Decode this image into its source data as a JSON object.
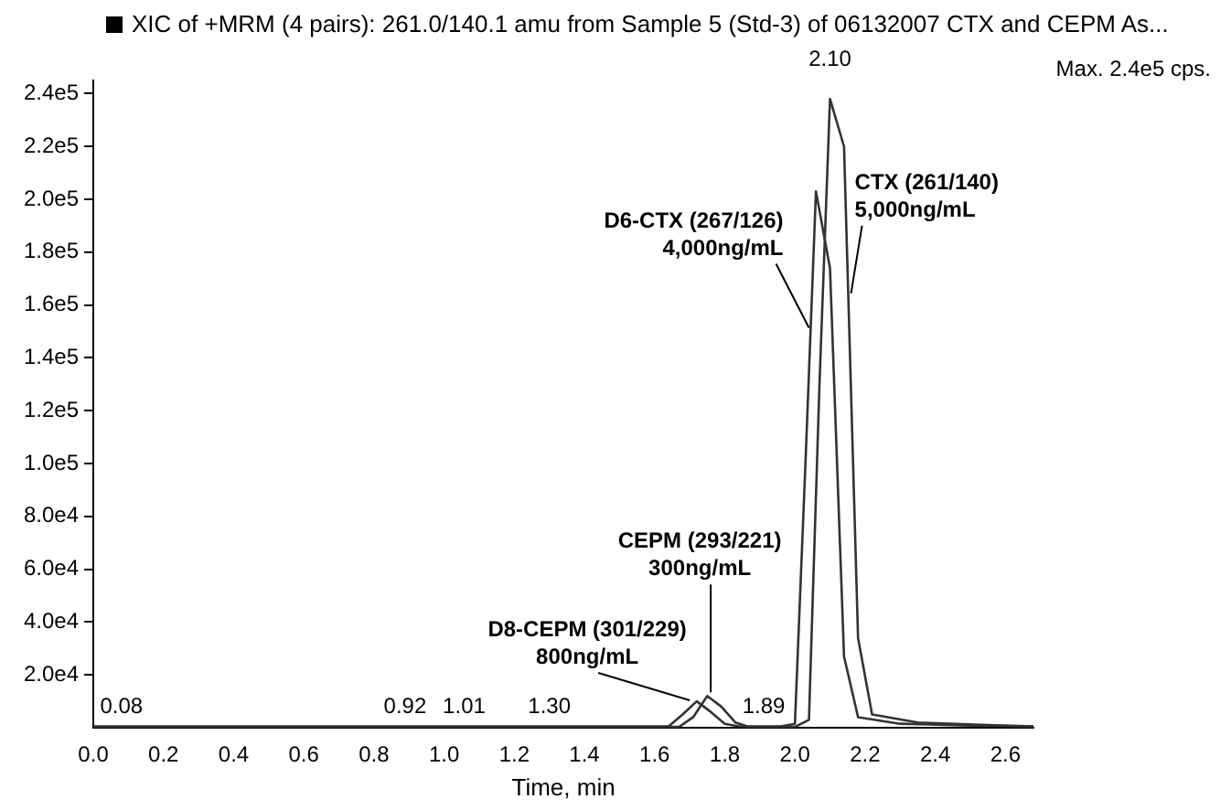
{
  "chart_data": {
    "type": "line",
    "title": "XIC of +MRM (4 pairs): 261.0/140.1 amu from Sample 5 (Std-3) of 06132007 CTX and CEPM As...",
    "xlabel": "Time, min",
    "xlim": [
      0,
      2.68
    ],
    "ylim": [
      0,
      245000
    ],
    "xticks": [
      {
        "value": 0,
        "label": "0.0"
      },
      {
        "value": 0.2,
        "label": "0.2"
      },
      {
        "value": 0.4,
        "label": "0.4"
      },
      {
        "value": 0.6,
        "label": "0.6"
      },
      {
        "value": 0.8,
        "label": "0.8"
      },
      {
        "value": 1,
        "label": "1.0"
      },
      {
        "value": 1.2,
        "label": "1.2"
      },
      {
        "value": 1.4,
        "label": "1.4"
      },
      {
        "value": 1.6,
        "label": "1.6"
      },
      {
        "value": 1.8,
        "label": "1.8"
      },
      {
        "value": 2,
        "label": "2.0"
      },
      {
        "value": 2.2,
        "label": "2.2"
      },
      {
        "value": 2.4,
        "label": "2.4"
      },
      {
        "value": 2.6,
        "label": "2.6"
      }
    ],
    "yticks": [
      {
        "value": 20000,
        "label": "2.0e4"
      },
      {
        "value": 40000,
        "label": "4.0e4"
      },
      {
        "value": 60000,
        "label": "6.0e4"
      },
      {
        "value": 80000,
        "label": "8.0e4"
      },
      {
        "value": 100000,
        "label": "1.0e5"
      },
      {
        "value": 120000,
        "label": "1.2e5"
      },
      {
        "value": 140000,
        "label": "1.4e5"
      },
      {
        "value": 160000,
        "label": "1.6e5"
      },
      {
        "value": 180000,
        "label": "1.8e5"
      },
      {
        "value": 200000,
        "label": "2.0e5"
      },
      {
        "value": 220000,
        "label": "2.2e5"
      },
      {
        "value": 240000,
        "label": "2.4e5"
      }
    ],
    "grid": false,
    "legend": false,
    "marker": "none",
    "line_style": "solid",
    "series": [
      {
        "color": "#333333",
        "x": [
          0,
          0.5,
          1,
          1.5,
          1.64,
          1.68,
          1.72,
          1.76,
          1.8,
          1.84,
          1.96,
          2.0,
          2.03,
          2.06,
          2.1,
          2.14,
          2.18,
          2.3,
          2.5,
          2.68
        ],
        "values": [
          500,
          500,
          500,
          500,
          500,
          5000,
          10000,
          6000,
          1500,
          500,
          500,
          1500,
          100000,
          203000,
          174000,
          27000,
          4000,
          1500,
          800,
          500
        ]
      },
      {
        "color": "#333333",
        "x": [
          0,
          0.5,
          1,
          1.5,
          1.67,
          1.71,
          1.75,
          1.79,
          1.83,
          1.87,
          2.0,
          2.04,
          2.07,
          2.1,
          2.14,
          2.18,
          2.22,
          2.35,
          2.55,
          2.68
        ],
        "values": [
          300,
          300,
          300,
          300,
          300,
          4000,
          12000,
          8000,
          2000,
          300,
          300,
          3000,
          130000,
          238000,
          220000,
          34000,
          5000,
          2000,
          1000,
          500
        ]
      }
    ],
    "annotations": [
      {
        "text": "2.10",
        "x": 2.1,
        "y": 238000
      },
      {
        "text": "0.08",
        "x": 0.08,
        "y": 0
      },
      {
        "text": "0.92",
        "x": 0.92,
        "y": 0
      },
      {
        "text": "1.01",
        "x": 1.01,
        "y": 0
      },
      {
        "text": "1.30",
        "x": 1.3,
        "y": 0
      },
      {
        "text": "1.89",
        "x": 1.89,
        "y": 0
      },
      {
        "text": "CTX (261/140)\n5,000ng/mL",
        "x": 2.16,
        "y": 163000
      },
      {
        "text": "D6-CTX (267/126)\n4,000ng/mL",
        "x": 2.04,
        "y": 150000
      },
      {
        "text": "CEPM (293/221)\n300ng/mL",
        "x": 1.76,
        "y": 12000
      },
      {
        "text": "D8-CEPM (301/229)\n800ng/mL",
        "x": 1.7,
        "y": 9000
      },
      "Max. 2.4e5 cps."
    ]
  }
}
